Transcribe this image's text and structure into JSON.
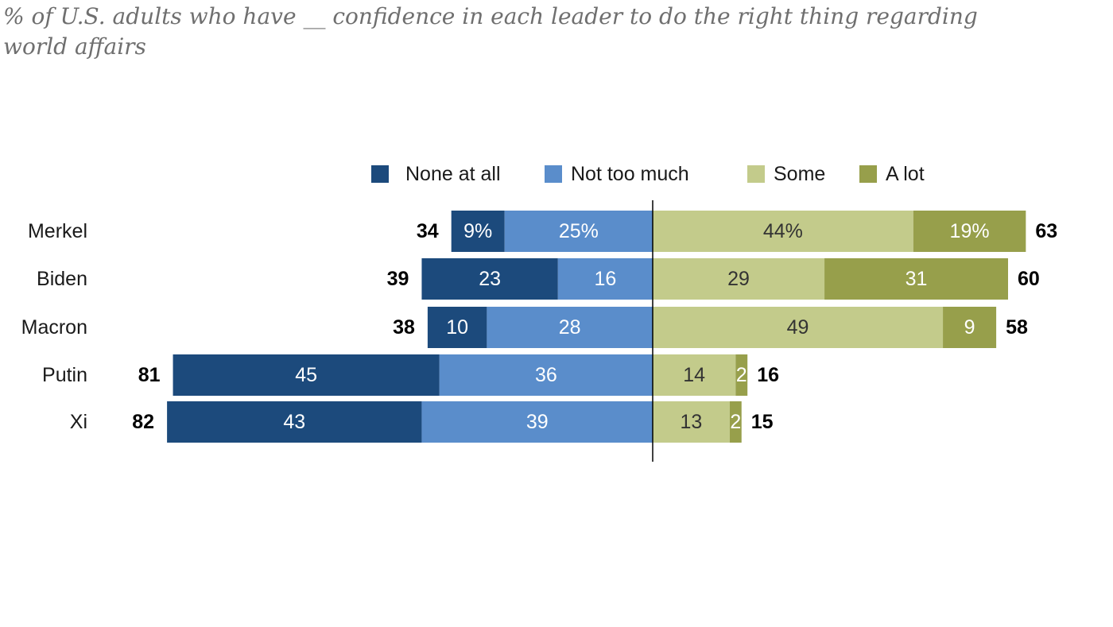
{
  "chart_data": {
    "type": "bar",
    "orientation": "horizontal-diverging",
    "subtitle": "% of U.S. adults who have __ confidence in each leader to do the right thing regarding world affairs",
    "categories": [
      "Merkel",
      "Biden",
      "Macron",
      "Putin",
      "Xi"
    ],
    "series": [
      {
        "name": "None at all",
        "side": "negative",
        "color": "#1c4a7c",
        "text_color": "#ffffff",
        "values": [
          9,
          23,
          10,
          45,
          43
        ],
        "labels": [
          "9%",
          "23",
          "10",
          "45",
          "43"
        ]
      },
      {
        "name": "Not too much",
        "side": "negative",
        "color": "#5a8dcb",
        "text_color": "#ffffff",
        "values": [
          25,
          16,
          28,
          36,
          39
        ],
        "labels": [
          "25%",
          "16",
          "28",
          "36",
          "39"
        ]
      },
      {
        "name": "Some",
        "side": "positive",
        "color": "#c3cb8b",
        "text_color": "#333333",
        "values": [
          44,
          29,
          49,
          14,
          13
        ],
        "labels": [
          "44%",
          "29",
          "49",
          "14",
          "13"
        ]
      },
      {
        "name": "A lot",
        "side": "positive",
        "color": "#979f4b",
        "text_color": "#ffffff",
        "values": [
          19,
          31,
          9,
          2,
          2
        ],
        "labels": [
          "19%",
          "31",
          "9",
          "2",
          "2"
        ]
      }
    ],
    "negative_totals": [
      "34",
      "39",
      "38",
      "81",
      "82"
    ],
    "positive_totals": [
      "63",
      "60",
      "58",
      "16",
      "15"
    ],
    "legend_placement": "top",
    "grid": false,
    "baseline_value": 0
  }
}
